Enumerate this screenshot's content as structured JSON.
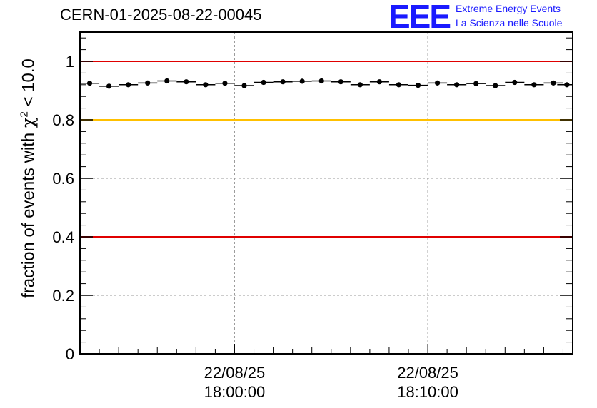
{
  "header": {
    "title": "CERN-01-2025-08-22-00045"
  },
  "logo": {
    "mark": "EEE",
    "line1": "Extreme Energy Events",
    "line2": "La Scienza nelle Scuole"
  },
  "colors": {
    "red_line": "#e00000",
    "yellow_line": "#ffc000",
    "logo_blue": "#1a1aff",
    "points": "#000000",
    "grid": "#999999"
  },
  "chart_data": {
    "type": "scatter",
    "ylabel_prefix": "fraction of events with ",
    "ylabel_chi": "χ",
    "ylabel_sup": "2",
    "ylabel_suffix": " < 10.0",
    "ylim": [
      0,
      1.1
    ],
    "yticks": [
      0,
      0.2,
      0.4,
      0.6,
      0.8,
      1
    ],
    "ytick_labels": [
      "0",
      "0.2",
      "0.4",
      "0.6",
      "0.8",
      "1"
    ],
    "x_minutes_range": [
      -8,
      17.5
    ],
    "xticks": [
      {
        "minute": 0,
        "date": "22/08/25",
        "time": "18:00:00"
      },
      {
        "minute": 10,
        "date": "22/08/25",
        "time": "18:10:00"
      }
    ],
    "reference_lines": [
      {
        "y": 1.0,
        "color": "red"
      },
      {
        "y": 0.8,
        "color": "yellow"
      },
      {
        "y": 0.4,
        "color": "red"
      }
    ],
    "grid": true,
    "points_minute": [
      -7.5,
      -6.5,
      -5.5,
      -4.5,
      -3.5,
      -2.5,
      -1.5,
      -0.5,
      0.5,
      1.5,
      2.5,
      3.5,
      4.5,
      5.5,
      6.5,
      7.5,
      8.5,
      9.5,
      10.5,
      11.5,
      12.5,
      13.5,
      14.5,
      15.5,
      16.5,
      17.2
    ],
    "points_y": [
      0.925,
      0.915,
      0.92,
      0.926,
      0.933,
      0.93,
      0.92,
      0.925,
      0.917,
      0.928,
      0.93,
      0.932,
      0.933,
      0.93,
      0.92,
      0.93,
      0.92,
      0.918,
      0.926,
      0.92,
      0.924,
      0.917,
      0.928,
      0.92,
      0.926,
      0.92
    ]
  }
}
